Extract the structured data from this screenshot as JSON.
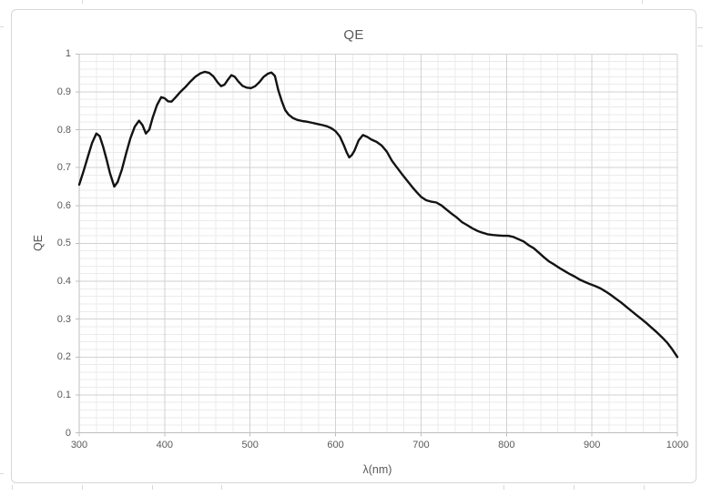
{
  "chart": {
    "title": "QE",
    "x_axis": {
      "title": "λ(nm)",
      "min": 300,
      "max": 1000,
      "major_unit": 100,
      "minor_unit": 20,
      "tick_labels": [
        "300",
        "400",
        "500",
        "600",
        "700",
        "800",
        "900",
        "1000"
      ]
    },
    "y_axis": {
      "title": "QE",
      "min": 0,
      "max": 1,
      "major_unit": 0.1,
      "minor_unit": 0.02,
      "tick_labels": [
        "0",
        "0.1",
        "0.2",
        "0.3",
        "0.4",
        "0.5",
        "0.6",
        "0.7",
        "0.8",
        "0.9",
        "1"
      ]
    },
    "colors": {
      "line": "#131313",
      "major_grid": "#d2d2d2",
      "minor_grid": "#ebebeb",
      "axis": "#bfbfbf",
      "text": "#595959",
      "chart_border": "#d7d7d7",
      "background": "#ffffff"
    }
  },
  "chart_data": {
    "type": "line",
    "title": "QE",
    "xlabel": "λ(nm)",
    "ylabel": "QE",
    "xlim": [
      300,
      1000
    ],
    "ylim": [
      0,
      1
    ],
    "grid": "major+minor",
    "legend": "none",
    "x": [
      300,
      305,
      310,
      315,
      320,
      324,
      328,
      332,
      336,
      341,
      345,
      350,
      355,
      360,
      365,
      370,
      374,
      378,
      382,
      386,
      391,
      396,
      400,
      404,
      408,
      413,
      418,
      424,
      430,
      436,
      442,
      447,
      452,
      457,
      462,
      466,
      470,
      474,
      478,
      482,
      486,
      491,
      496,
      501,
      506,
      511,
      516,
      521,
      525,
      529,
      533,
      537,
      541,
      545,
      550,
      555,
      561,
      567,
      573,
      579,
      585,
      590,
      595,
      600,
      605,
      610,
      613,
      616,
      619,
      622,
      627,
      632,
      637,
      642,
      648,
      654,
      660,
      666,
      672,
      678,
      684,
      690,
      695,
      700,
      706,
      712,
      718,
      724,
      730,
      736,
      742,
      748,
      754,
      760,
      766,
      772,
      778,
      784,
      790,
      796,
      802,
      808,
      814,
      820,
      826,
      832,
      838,
      844,
      850,
      856,
      862,
      868,
      874,
      880,
      886,
      892,
      898,
      904,
      910,
      916,
      922,
      928,
      934,
      940,
      946,
      952,
      958,
      964,
      970,
      976,
      982,
      988,
      994,
      1000
    ],
    "y": [
      0.655,
      0.69,
      0.728,
      0.765,
      0.79,
      0.783,
      0.755,
      0.722,
      0.685,
      0.65,
      0.662,
      0.695,
      0.738,
      0.778,
      0.808,
      0.824,
      0.812,
      0.79,
      0.8,
      0.832,
      0.865,
      0.886,
      0.883,
      0.875,
      0.874,
      0.886,
      0.899,
      0.912,
      0.927,
      0.94,
      0.949,
      0.953,
      0.95,
      0.941,
      0.925,
      0.915,
      0.919,
      0.932,
      0.944,
      0.94,
      0.928,
      0.916,
      0.911,
      0.91,
      0.915,
      0.926,
      0.94,
      0.948,
      0.951,
      0.942,
      0.904,
      0.876,
      0.852,
      0.84,
      0.831,
      0.826,
      0.823,
      0.821,
      0.818,
      0.815,
      0.812,
      0.809,
      0.804,
      0.796,
      0.782,
      0.757,
      0.74,
      0.727,
      0.733,
      0.744,
      0.772,
      0.786,
      0.781,
      0.774,
      0.768,
      0.758,
      0.742,
      0.718,
      0.7,
      0.682,
      0.665,
      0.648,
      0.635,
      0.623,
      0.614,
      0.61,
      0.608,
      0.6,
      0.589,
      0.578,
      0.568,
      0.556,
      0.548,
      0.54,
      0.533,
      0.528,
      0.524,
      0.522,
      0.521,
      0.52,
      0.52,
      0.517,
      0.511,
      0.505,
      0.495,
      0.487,
      0.475,
      0.463,
      0.452,
      0.444,
      0.435,
      0.427,
      0.419,
      0.412,
      0.404,
      0.398,
      0.392,
      0.387,
      0.381,
      0.373,
      0.364,
      0.354,
      0.344,
      0.333,
      0.322,
      0.311,
      0.3,
      0.289,
      0.277,
      0.265,
      0.252,
      0.238,
      0.22,
      0.2
    ]
  }
}
